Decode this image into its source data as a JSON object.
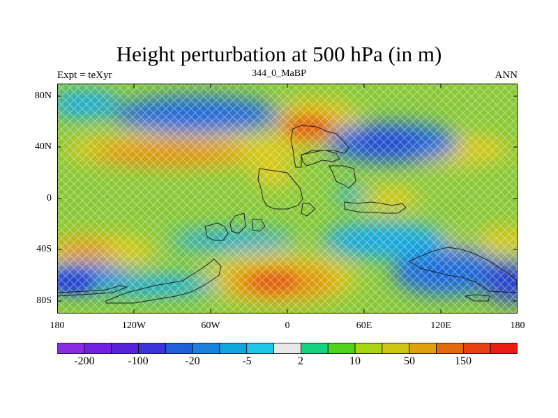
{
  "title": "Height perturbation at 500 hPa (in m)",
  "left_string": "Expt = teXyr",
  "center_string": "344_0_MaBP",
  "right_string": "ANN",
  "lat_ticks": [
    "80N",
    "40N",
    "0",
    "40S",
    "80S"
  ],
  "lon_ticks": [
    "180",
    "120W",
    "60W",
    "0",
    "60E",
    "120E",
    "180"
  ],
  "colorbar": {
    "colors": [
      "#8a2be2",
      "#7020e0",
      "#5a22d8",
      "#3a35d8",
      "#1f5fd9",
      "#1a82da",
      "#12a6dc",
      "#20c8e8",
      "#e8e8e8",
      "#16d27e",
      "#50d21a",
      "#a8d414",
      "#d0c414",
      "#dfa010",
      "#e46a10",
      "#e83e14",
      "#e81e10"
    ],
    "labels": [
      "-200",
      "-100",
      "-20",
      "-5",
      "2",
      "10",
      "50",
      "150"
    ]
  },
  "map_colors": {
    "background": "#88c838",
    "yellow": "#d8c818",
    "orange": "#e09010",
    "deep_orange": "#e06010",
    "blue": "#1a6ad8",
    "deep_blue": "#2840d0",
    "light_blue": "#18a8e0"
  }
}
